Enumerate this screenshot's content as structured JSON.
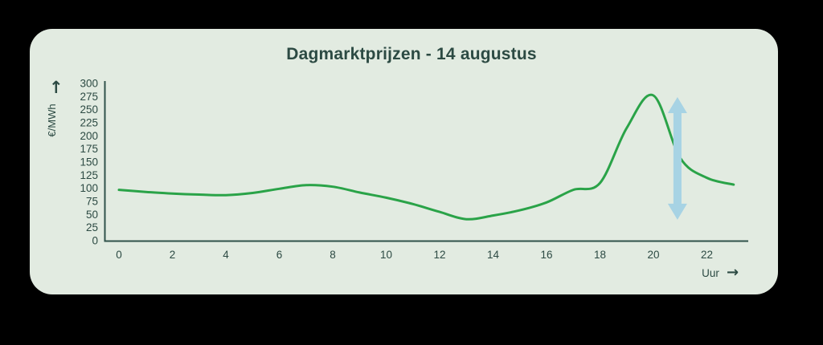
{
  "page": {
    "title": "Dagmarktprijzen - 14 augustus",
    "background": "#000000",
    "card_background": "#e2ebe1"
  },
  "colors": {
    "ink": "#2c4a43",
    "axis": "#30524a",
    "line_green": "#2aa348",
    "arrow_blue": "#a7d3e4"
  },
  "labels": {
    "y_axis_arrow": "↑",
    "y_axis_unit": "€/MWh",
    "x_axis_unit": "Uur",
    "x_axis_arrow": "→"
  },
  "chart_data": {
    "type": "line",
    "title": "Dagmarktprijzen - 14 augustus",
    "xlabel": "Uur",
    "ylabel": "€/MWh",
    "x": [
      0,
      1,
      2,
      3,
      4,
      5,
      6,
      7,
      8,
      9,
      10,
      11,
      12,
      13,
      14,
      15,
      16,
      17,
      18,
      19,
      20,
      21,
      22,
      23
    ],
    "y": [
      97,
      93,
      90,
      88,
      87,
      91,
      99,
      106,
      103,
      92,
      82,
      70,
      55,
      41,
      48,
      58,
      73,
      97,
      110,
      215,
      277,
      158,
      120,
      107
    ],
    "xticks": [
      0,
      2,
      4,
      6,
      8,
      10,
      12,
      14,
      16,
      18,
      20,
      22
    ],
    "yticks": [
      0,
      25,
      50,
      75,
      100,
      125,
      150,
      175,
      200,
      225,
      250,
      275,
      300
    ],
    "xlim": [
      0,
      23.5
    ],
    "ylim": [
      0,
      300
    ],
    "grid": false,
    "legend_position": "none",
    "annotation": {
      "type": "double_arrow",
      "x": 20.9,
      "y_top": 274,
      "y_bottom": 40
    }
  }
}
